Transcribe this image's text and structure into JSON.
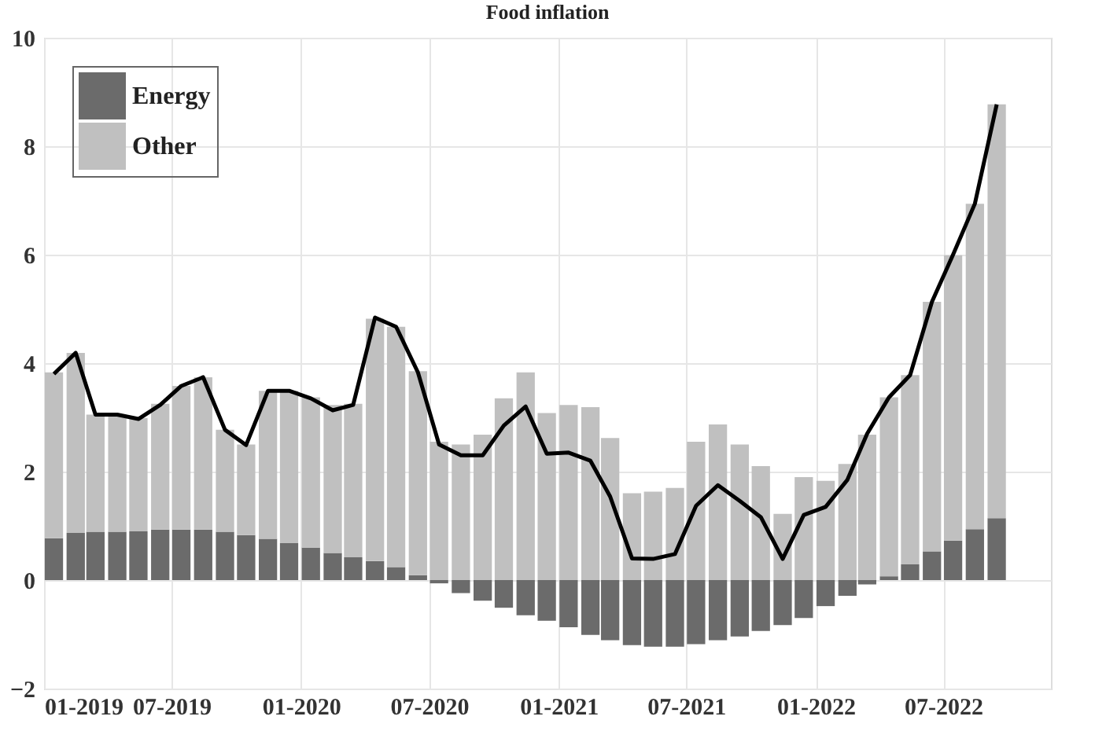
{
  "chart_data": {
    "type": "bar",
    "title": "Food inflation",
    "stacked": true,
    "x": [
      "2019-01-15",
      "2019-02-15",
      "2019-03-15",
      "2019-04-15",
      "2019-05-15",
      "2019-06-15",
      "2019-07-15",
      "2019-08-15",
      "2019-09-15",
      "2019-10-15",
      "2019-11-15",
      "2019-12-15",
      "2020-01-15",
      "2020-02-15",
      "2020-03-15",
      "2020-04-15",
      "2020-05-15",
      "2020-06-15",
      "2020-07-15",
      "2020-08-15",
      "2020-09-15",
      "2020-10-15",
      "2020-11-15",
      "2020-12-15",
      "2021-01-15",
      "2021-02-15",
      "2021-03-15",
      "2021-04-15",
      "2021-05-15",
      "2021-06-15",
      "2021-07-15",
      "2021-08-15",
      "2021-09-15",
      "2021-10-15",
      "2021-11-15",
      "2021-12-15",
      "2022-01-15",
      "2022-02-15",
      "2022-03-15",
      "2022-04-15",
      "2022-05-15",
      "2022-06-15",
      "2022-07-15",
      "2022-08-15",
      "2022-09-15"
    ],
    "series": [
      {
        "name": "Energy",
        "color": "#6b6b6b",
        "values": [
          0.77,
          0.87,
          0.89,
          0.89,
          0.9,
          0.93,
          0.93,
          0.93,
          0.89,
          0.83,
          0.76,
          0.68,
          0.6,
          0.5,
          0.42,
          0.35,
          0.24,
          0.09,
          -0.06,
          -0.24,
          -0.38,
          -0.51,
          -0.65,
          -0.75,
          -0.87,
          -1.01,
          -1.11,
          -1.2,
          -1.23,
          -1.23,
          -1.18,
          -1.11,
          -1.04,
          -0.94,
          -0.83,
          -0.7,
          -0.48,
          -0.29,
          -0.08,
          0.07,
          0.29,
          0.53,
          0.73,
          0.94,
          1.14
        ]
      },
      {
        "name": "Other",
        "color": "#c0c0c0",
        "values": [
          3.06,
          3.32,
          2.16,
          2.16,
          2.09,
          2.32,
          2.65,
          2.81,
          1.88,
          1.67,
          2.73,
          2.81,
          2.77,
          2.73,
          2.83,
          4.47,
          4.43,
          3.76,
          2.55,
          2.5,
          2.68,
          3.35,
          3.83,
          3.08,
          3.23,
          3.19,
          2.62,
          1.6,
          1.63,
          1.7,
          2.55,
          2.87,
          2.5,
          2.1,
          1.22,
          1.9,
          1.83,
          2.14,
          2.68,
          3.3,
          3.49,
          4.6,
          5.26,
          6.0,
          7.63
        ]
      },
      {
        "type": "line",
        "color": "#000000",
        "values": [
          3.8,
          4.19,
          3.05,
          3.05,
          2.97,
          3.23,
          3.58,
          3.74,
          2.77,
          2.49,
          3.49,
          3.49,
          3.35,
          3.13,
          3.23,
          4.84,
          4.67,
          3.83,
          2.5,
          2.3,
          2.3,
          2.85,
          3.2,
          2.33,
          2.35,
          2.2,
          1.54,
          0.4,
          0.39,
          0.48,
          1.37,
          1.75,
          1.46,
          1.16,
          0.39,
          1.2,
          1.35,
          1.85,
          2.7,
          3.37,
          3.78,
          5.13,
          6.0,
          6.94,
          8.77
        ]
      }
    ],
    "xlim": [
      "2019-01",
      "2022-12"
    ],
    "xticks": [
      {
        "value": "2019-01",
        "label": "01-2019"
      },
      {
        "value": "2019-07",
        "label": "07-2019"
      },
      {
        "value": "2020-01",
        "label": "01-2020"
      },
      {
        "value": "2020-07",
        "label": "07-2020"
      },
      {
        "value": "2021-01",
        "label": "01-2021"
      },
      {
        "value": "2021-07",
        "label": "07-2021"
      },
      {
        "value": "2022-01",
        "label": "01-2022"
      },
      {
        "value": "2022-07",
        "label": "07-2022"
      }
    ],
    "ylim": [
      -2,
      10
    ],
    "yticks": [
      -2,
      0,
      2,
      4,
      6,
      8,
      10
    ],
    "grid": true,
    "legend": "top left",
    "line_style": "solid",
    "marker": "none"
  }
}
